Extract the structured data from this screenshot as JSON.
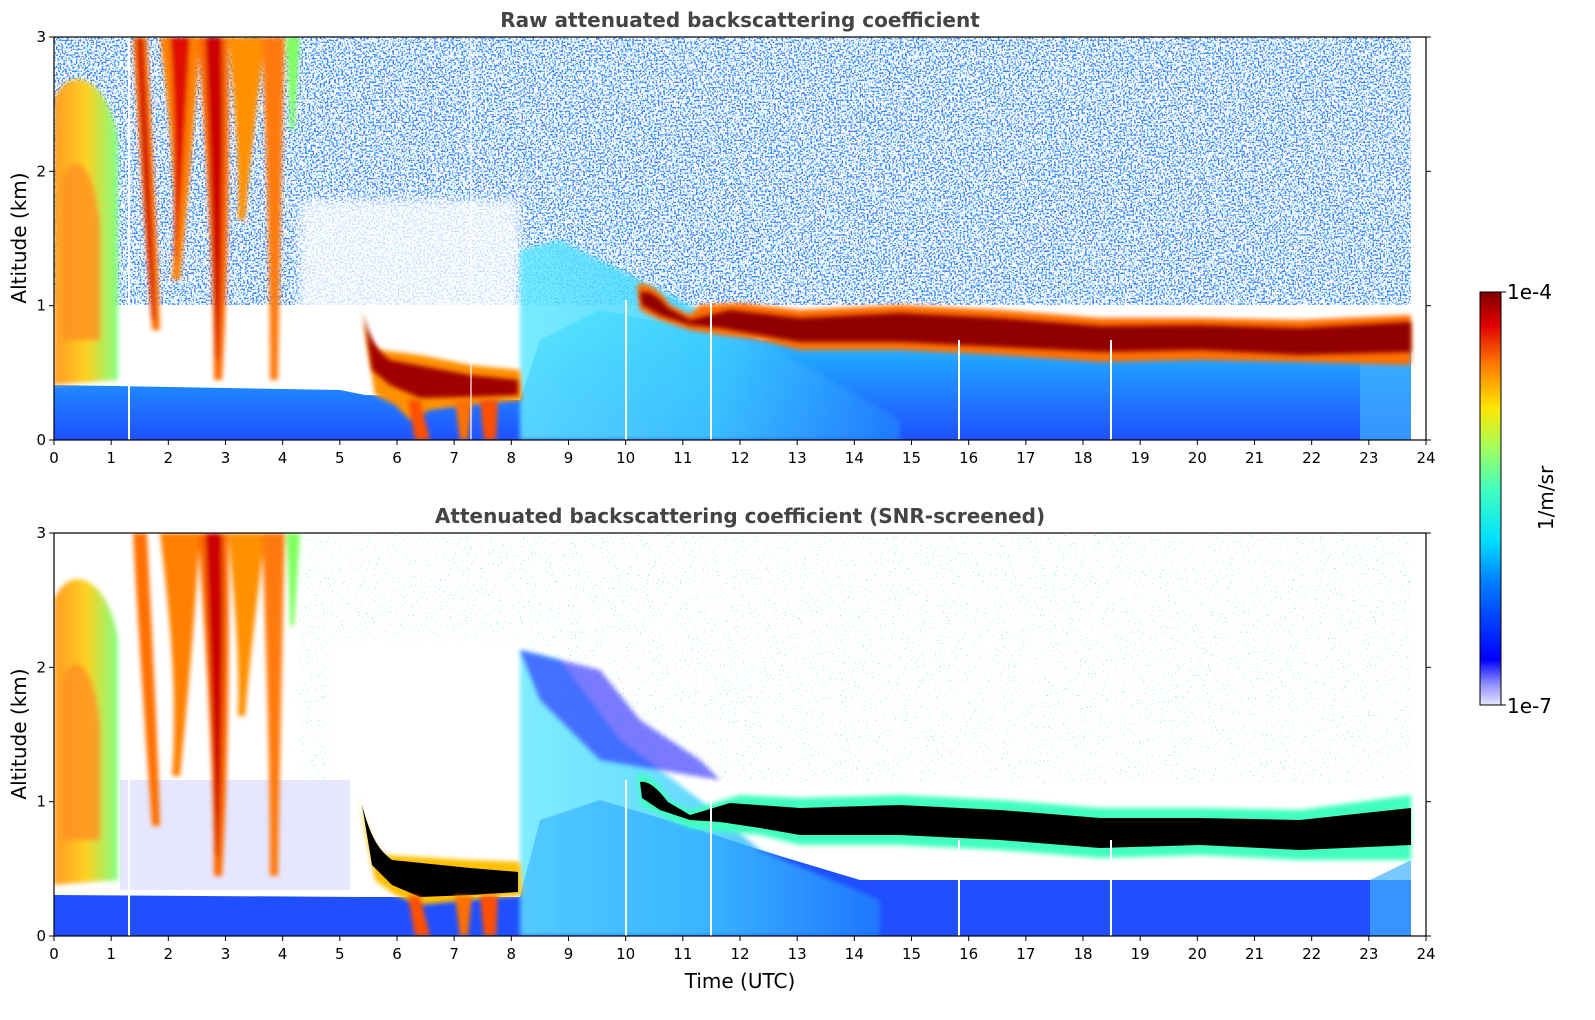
{
  "chart_data": [
    {
      "type": "heatmap",
      "title": "Raw attenuated backscattering coefficient",
      "xlabel": "",
      "ylabel": "Altitude (km)",
      "xlim": [
        0,
        24
      ],
      "ylim": [
        0,
        3
      ],
      "xticks": [
        "0",
        "1",
        "2",
        "3",
        "4",
        "5",
        "6",
        "7",
        "8",
        "9",
        "10",
        "11",
        "12",
        "13",
        "14",
        "15",
        "16",
        "17",
        "18",
        "19",
        "20",
        "21",
        "22",
        "23",
        "24"
      ],
      "yticks": [
        "0",
        "1",
        "2",
        "3"
      ],
      "data_extent_x": [
        0,
        23.75
      ],
      "cloud_layer": [
        {
          "t": 5.4,
          "alt": 1.0
        },
        {
          "t": 5.6,
          "alt": 0.7
        },
        {
          "t": 6.0,
          "alt": 0.55
        },
        {
          "t": 6.5,
          "alt": 0.5
        },
        {
          "t": 7.0,
          "alt": 0.45
        },
        {
          "t": 7.5,
          "alt": 0.42
        },
        {
          "t": 8.1,
          "alt": 0.4
        },
        {
          "t": 10.3,
          "alt": 1.05
        },
        {
          "t": 10.8,
          "alt": 0.95
        },
        {
          "t": 11.9,
          "alt": 0.88
        },
        {
          "t": 13.0,
          "alt": 0.8
        },
        {
          "t": 14.0,
          "alt": 0.8
        },
        {
          "t": 16.0,
          "alt": 0.82
        },
        {
          "t": 18.0,
          "alt": 0.75
        },
        {
          "t": 20.0,
          "alt": 0.8
        },
        {
          "t": 22.0,
          "alt": 0.72
        },
        {
          "t": 23.7,
          "alt": 0.82
        }
      ]
    },
    {
      "type": "heatmap",
      "title": "Attenuated backscattering coefficient (SNR-screened)",
      "xlabel": "Time (UTC)",
      "ylabel": "Altitude (km)",
      "xlim": [
        0,
        24
      ],
      "ylim": [
        0,
        3
      ],
      "xticks": [
        "0",
        "1",
        "2",
        "3",
        "4",
        "5",
        "6",
        "7",
        "8",
        "9",
        "10",
        "11",
        "12",
        "13",
        "14",
        "15",
        "16",
        "17",
        "18",
        "19",
        "20",
        "21",
        "22",
        "23",
        "24"
      ],
      "yticks": [
        "0",
        "1",
        "2",
        "3"
      ],
      "data_extent_x": [
        0,
        23.75
      ]
    }
  ],
  "colorbar": {
    "label": "1/m/sr",
    "max_label": "1e-4",
    "min_label": "1e-7",
    "scale": "log",
    "range": [
      1e-07,
      0.0001
    ],
    "colormap": "jet"
  }
}
